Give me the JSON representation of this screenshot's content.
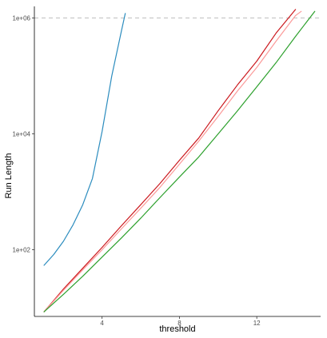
{
  "chart_data": {
    "type": "line",
    "xlabel": "threshold",
    "ylabel": "Run Length",
    "y_scale": "log10",
    "xlim": [
      0.5,
      15.3
    ],
    "ylim_log10": [
      0.85,
      6.2
    ],
    "x_ticks": [
      4,
      8,
      12
    ],
    "x_tick_labels": [
      "4",
      "8",
      "12"
    ],
    "y_ticks": [
      100,
      10000,
      1000000
    ],
    "y_tick_labels": [
      "1e+02",
      "1e+04",
      "1e+06"
    ],
    "reference_line": {
      "y": 1000000,
      "style": "dashed",
      "color": "#bfbfbf"
    },
    "grid": false,
    "legend": "none",
    "series": [
      {
        "color": "#2b8cbe",
        "x": [
          1,
          1.5,
          2,
          2.5,
          3,
          3.5,
          4,
          4.5,
          5,
          5.2
        ],
        "y": [
          54,
          83,
          140,
          270,
          600,
          1700,
          11000,
          100000,
          600000,
          1200000
        ]
      },
      {
        "color": "#cb181d",
        "x": [
          1,
          2,
          3,
          4,
          5,
          6,
          7,
          8,
          9,
          10,
          11,
          12,
          13,
          14
        ],
        "y": [
          8.5,
          21,
          48,
          110,
          260,
          600,
          1400,
          3500,
          8500,
          25000,
          70000,
          180000,
          550000,
          1400000
        ]
      },
      {
        "color": "#fb9a99",
        "x": [
          1,
          2,
          3,
          4,
          5,
          6,
          7,
          8,
          9,
          10,
          11,
          12,
          13,
          14,
          14.3
        ],
        "y": [
          8.5,
          20,
          45,
          100,
          230,
          520,
          1200,
          3000,
          7500,
          20000,
          55000,
          140000,
          400000,
          1100000,
          1300000
        ]
      },
      {
        "color": "#2ca02c",
        "x": [
          1,
          2,
          3,
          4,
          5,
          6,
          7,
          8,
          9,
          10,
          11,
          12,
          13,
          14,
          15
        ],
        "y": [
          8.5,
          17,
          35,
          75,
          160,
          350,
          800,
          1800,
          4000,
          10000,
          25000,
          65000,
          170000,
          480000,
          1300000
        ]
      }
    ]
  }
}
